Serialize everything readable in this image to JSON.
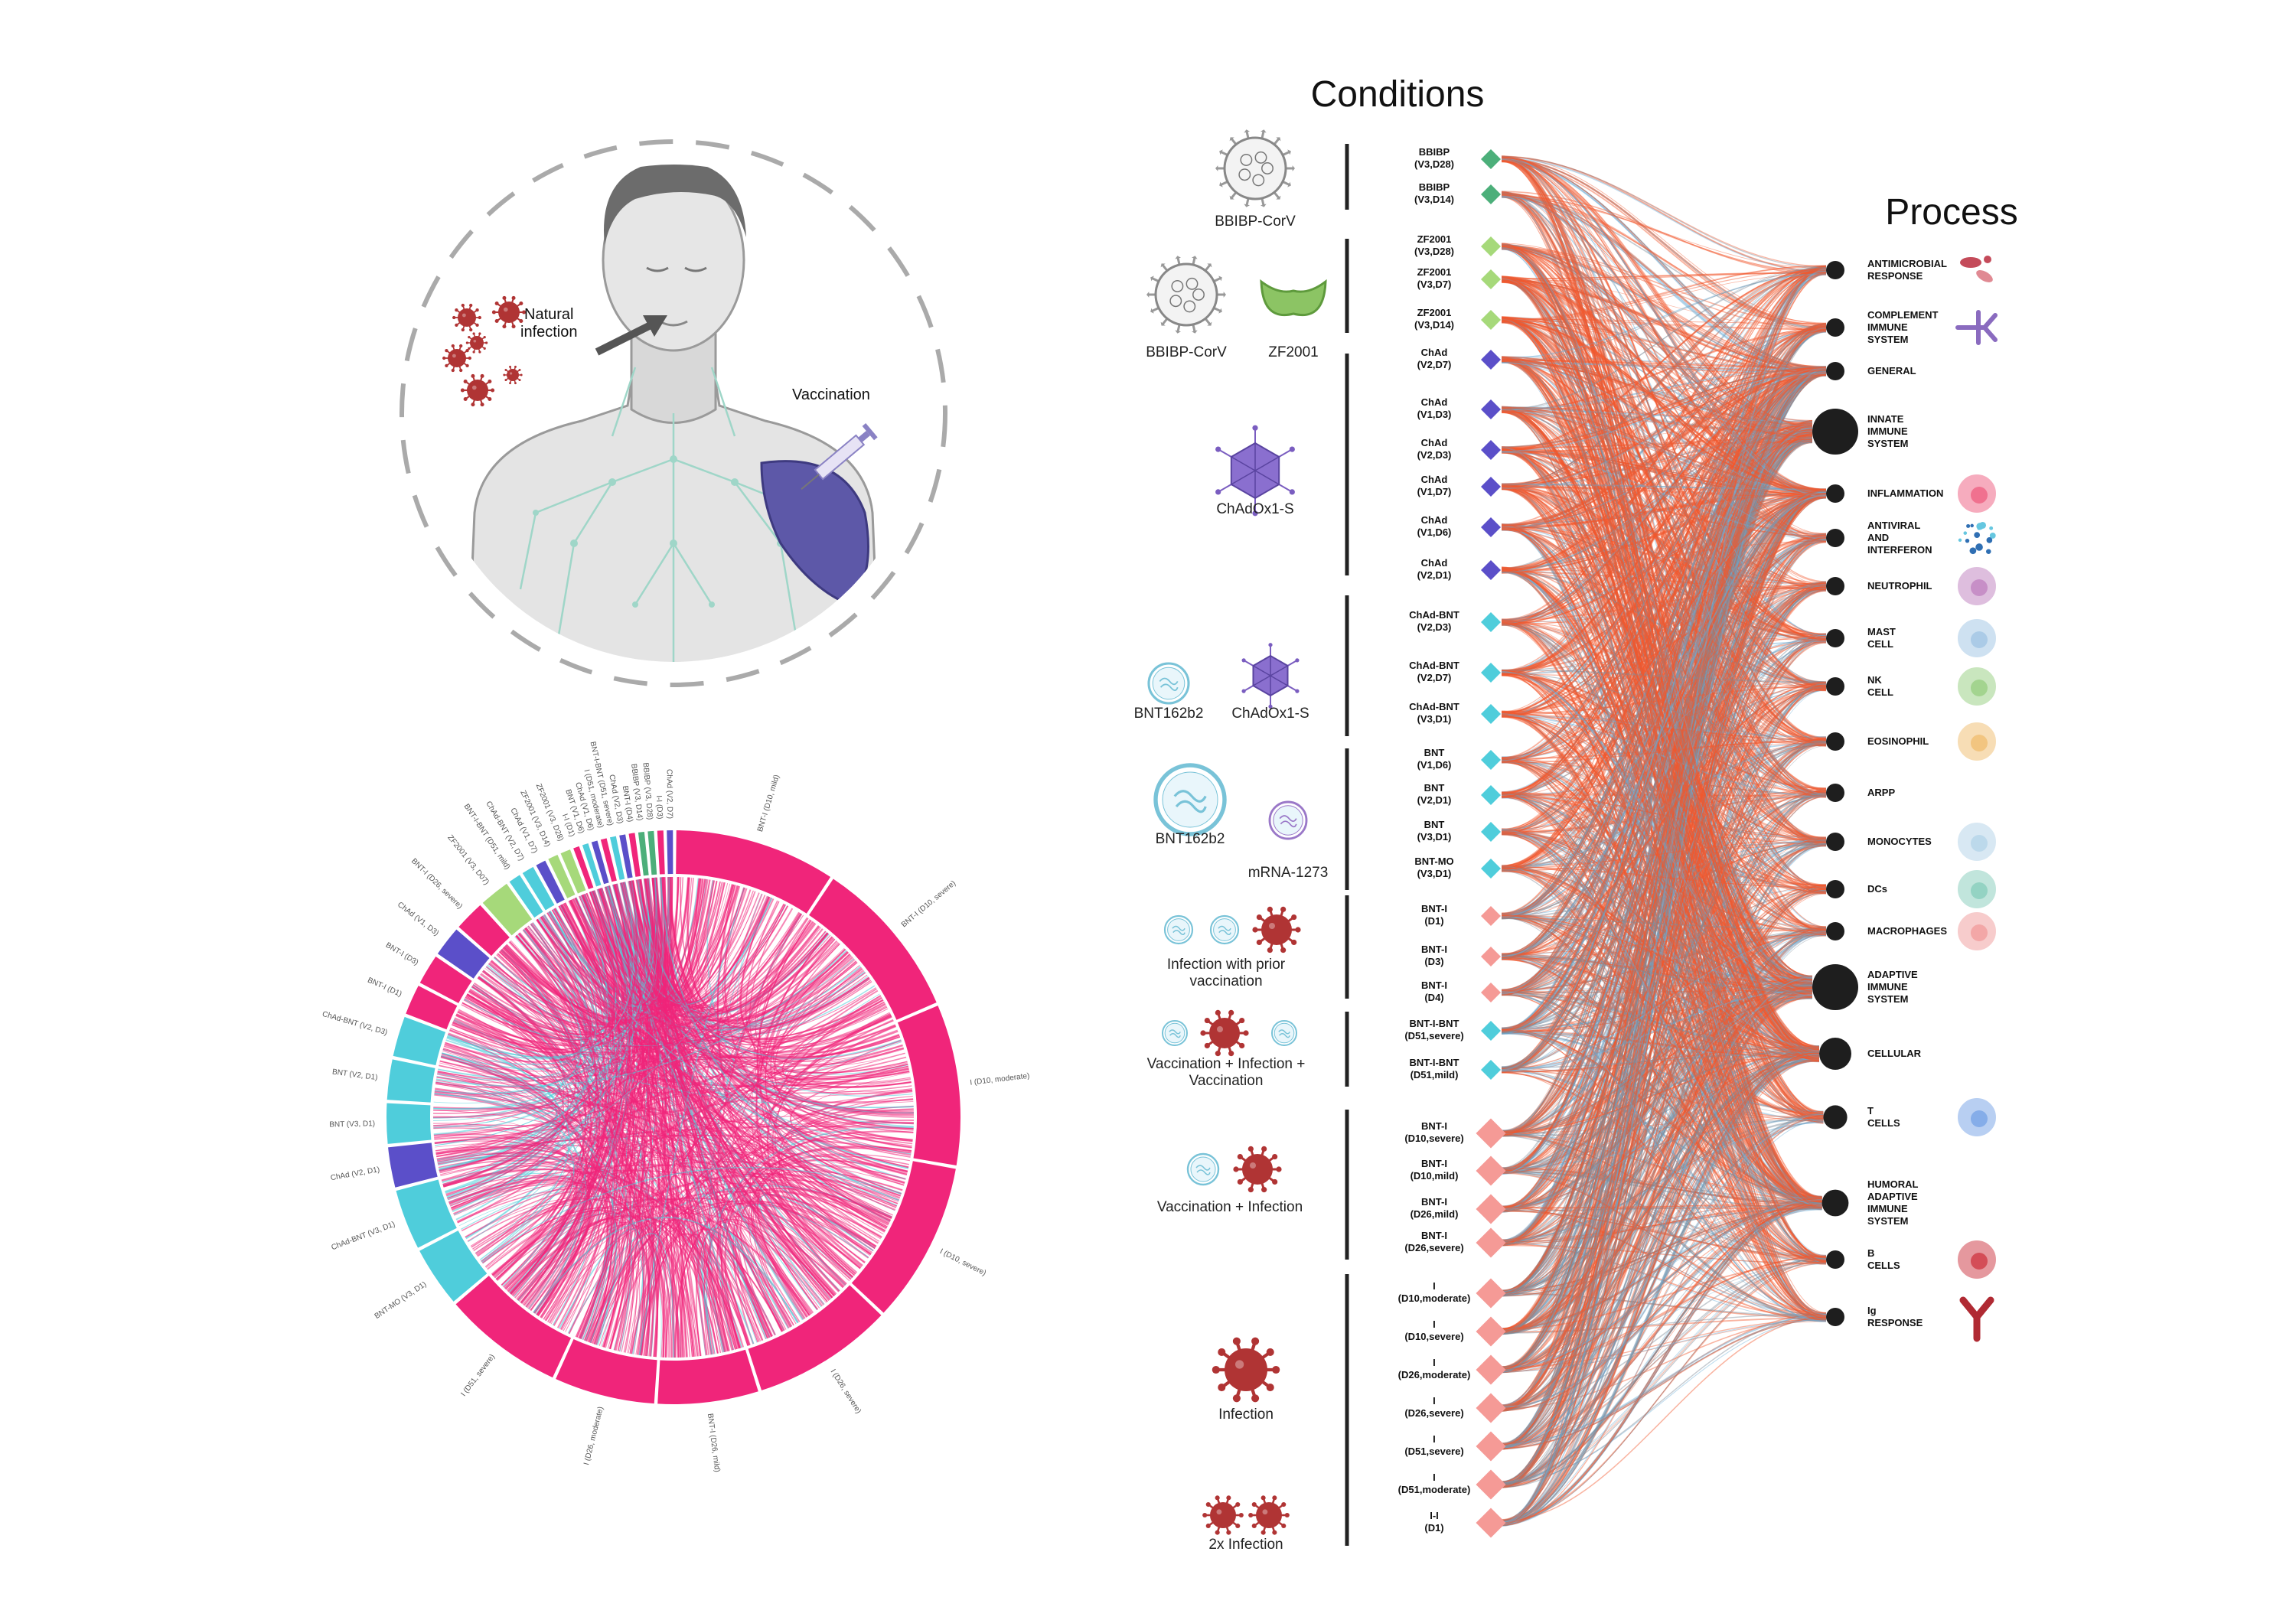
{
  "titles": {
    "conditions": "Conditions",
    "process": "Process"
  },
  "illustration": {
    "natural_infection": "Natural\ninfection",
    "vaccination": "Vaccination"
  },
  "colors": {
    "bbibp": "#4caf7a",
    "zf2001": "#a6d97a",
    "chad": "#5b4fc9",
    "chad_bnt": "#4fcddb",
    "bnt": "#4fcddb",
    "infection": "#f59a96",
    "red_link": "#f2582e",
    "blue_link": "#6aaed6",
    "grey_link": "#7f8c99",
    "chord_pink": "#f0257a"
  },
  "groups": [
    {
      "caption": "BBIBP-CorV",
      "icons": [
        "virion-icon"
      ],
      "rows": [
        "BBIBP\n(V3,D28)",
        "BBIBP\n(V3,D14)"
      ],
      "color": "#4caf7a"
    },
    {
      "caption": "",
      "icons": [
        "virion-icon",
        "zf2001-protein-icon"
      ],
      "icon_captions": [
        "BBIBP-CorV",
        "ZF2001"
      ],
      "rows": [
        "ZF2001\n(V3,D28)",
        "ZF2001\n(V3,D7)",
        "ZF2001\n(V3,D14)"
      ],
      "color": "#a6d97a"
    },
    {
      "caption": "ChAdOx1-S",
      "icons": [
        "adenovirus-icon"
      ],
      "rows": [
        "ChAd\n(V2,D7)",
        "ChAd\n(V1,D3)",
        "ChAd\n(V2,D3)",
        "ChAd\n(V1,D7)",
        "ChAd\n(V1,D6)",
        "ChAd\n(V2,D1)"
      ],
      "color": "#5b4fc9"
    },
    {
      "caption": "",
      "icons": [
        "mrna-lnp-icon",
        "adenovirus-icon"
      ],
      "icon_captions": [
        "BNT162b2",
        "ChAdOx1-S"
      ],
      "rows": [
        "ChAd-BNT\n(V2,D3)",
        "ChAd-BNT\n(V2,D7)",
        "ChAd-BNT\n(V3,D1)"
      ],
      "color": "#4fcddb"
    },
    {
      "caption": "",
      "icons": [
        "mrna-lnp-icon",
        "mrna-lnp-purple-icon"
      ],
      "icon_captions": [
        "BNT162b2",
        "mRNA-1273"
      ],
      "rows": [
        "BNT\n(V1,D6)",
        "BNT\n(V2,D1)",
        "BNT\n(V3,D1)",
        "BNT-MO\n(V3,D1)"
      ],
      "color": "#4fcddb"
    },
    {
      "caption": "Infection with prior\nvaccination",
      "icons": [
        "mrna-lnp-icon",
        "mrna-lnp-icon",
        "virus-icon"
      ],
      "rows": [
        "BNT-I\n(D1)",
        "BNT-I\n(D3)",
        "BNT-I\n(D4)"
      ],
      "color": "#f59a96"
    },
    {
      "caption": "Vaccination + Infection +\nVaccination",
      "icons": [
        "mrna-lnp-icon",
        "virus-icon",
        "mrna-lnp-icon"
      ],
      "rows": [
        "BNT-I-BNT\n(D51,severe)",
        "BNT-I-BNT\n(D51,mild)"
      ],
      "color": "#4fcddb"
    },
    {
      "caption": "Vaccination + Infection",
      "icons": [
        "mrna-lnp-icon",
        "virus-icon"
      ],
      "rows": [
        "BNT-I\n(D10,severe)",
        "BNT-I\n(D10,mild)",
        "BNT-I\n(D26,mild)",
        "BNT-I\n(D26,severe)"
      ],
      "color": "#f59a96"
    },
    {
      "caption": "Infection",
      "icons": [
        "virus-icon"
      ],
      "rows": [
        "I\n(D10,moderate)",
        "I\n(D10,severe)",
        "I\n(D26,moderate)",
        "I\n(D26,severe)",
        "I\n(D51,severe)",
        "I\n(D51,moderate)"
      ],
      "color": "#f59a96"
    },
    {
      "caption": "2x Infection",
      "icons": [
        "virus-icon",
        "virus-icon"
      ],
      "rows": [
        "I-I\n(D1)"
      ],
      "color": "#f59a96"
    }
  ],
  "processes": [
    {
      "label": "ANTIMICROBIAL\nRESPONSE",
      "size": 1,
      "icon": "bacteria-icon"
    },
    {
      "label": "COMPLEMENT\nIMMUNE\nSYSTEM",
      "size": 1,
      "icon": "complement-icon"
    },
    {
      "label": "GENERAL",
      "size": 1,
      "icon": ""
    },
    {
      "label": "INNATE\nIMMUNE\nSYSTEM",
      "size": 2,
      "icon": ""
    },
    {
      "label": "INFLAMMATION",
      "size": 1,
      "icon": "inflammation-icon"
    },
    {
      "label": "ANTIVIRAL\nAND\nINTERFERON",
      "size": 1,
      "icon": "interferon-icon"
    },
    {
      "label": "NEUTROPHIL",
      "size": 1,
      "icon": "neutrophil-icon"
    },
    {
      "label": "MAST\nCELL",
      "size": 1,
      "icon": "mast-cell-icon"
    },
    {
      "label": "NK\nCELL",
      "size": 1,
      "icon": "nk-cell-icon"
    },
    {
      "label": "EOSINOPHIL",
      "size": 1,
      "icon": "eosinophil-icon"
    },
    {
      "label": "ARPP",
      "size": 1,
      "icon": ""
    },
    {
      "label": "MONOCYTES",
      "size": 1,
      "icon": "monocyte-icon"
    },
    {
      "label": "DCs",
      "size": 1,
      "icon": "dendritic-cell-icon"
    },
    {
      "label": "MACROPHAGES",
      "size": 1,
      "icon": "macrophage-icon"
    },
    {
      "label": "ADAPTIVE\nIMMUNE\nSYSTEM",
      "size": 2,
      "icon": ""
    },
    {
      "label": "CELLULAR",
      "size": 1.5,
      "icon": ""
    },
    {
      "label": "T\nCELLS",
      "size": 1.2,
      "icon": "t-cell-icon"
    },
    {
      "label": "HUMORAL\nADAPTIVE\nIMMUNE\nSYSTEM",
      "size": 1.3,
      "icon": ""
    },
    {
      "label": "B\nCELLS",
      "size": 1,
      "icon": "b-cell-icon"
    },
    {
      "label": "Ig\nRESPONSE",
      "size": 1,
      "icon": "antibody-icon"
    }
  ],
  "chord_data": {
    "type": "chord",
    "segments": [
      {
        "label": "BNT-I (D10, mild)",
        "weight": 8,
        "color": "#f0257a"
      },
      {
        "label": "BNT-I (D10, severe)",
        "weight": 8,
        "color": "#f0257a"
      },
      {
        "label": "I (D10, moderate)",
        "weight": 8,
        "color": "#f0257a"
      },
      {
        "label": "I (D10, severe)",
        "weight": 8,
        "color": "#f0257a"
      },
      {
        "label": "I (D26, severe)",
        "weight": 7,
        "color": "#f0257a"
      },
      {
        "label": "BNT-I (D26, mild)",
        "weight": 5,
        "color": "#f0257a"
      },
      {
        "label": "I (D26, moderate)",
        "weight": 5,
        "color": "#f0257a"
      },
      {
        "label": "I (D51, severe)",
        "weight": 6,
        "color": "#f0257a"
      },
      {
        "label": "BNT-MO (V3, D1)",
        "weight": 3,
        "color": "#4fcddb"
      },
      {
        "label": "ChAd-BNT (V3, D1)",
        "weight": 3,
        "color": "#4fcddb"
      },
      {
        "label": "ChAd (V2, D1)",
        "weight": 2,
        "color": "#5b4fc9"
      },
      {
        "label": "BNT (V3, D1)",
        "weight": 2,
        "color": "#4fcddb"
      },
      {
        "label": "BNT (V2, D1)",
        "weight": 2,
        "color": "#4fcddb"
      },
      {
        "label": "ChAd-BNT (V2, D3)",
        "weight": 2,
        "color": "#4fcddb"
      },
      {
        "label": "BNT-I (D1)",
        "weight": 1.5,
        "color": "#f0257a"
      },
      {
        "label": "BNT-I (D3)",
        "weight": 1.5,
        "color": "#f0257a"
      },
      {
        "label": "ChAd (V1, D3)",
        "weight": 1.5,
        "color": "#5b4fc9"
      },
      {
        "label": "BNT-I (D26, severe)",
        "weight": 1.5,
        "color": "#f0257a"
      },
      {
        "label": "ZF2001 (V3, D07)",
        "weight": 1.5,
        "color": "#a6d97a"
      },
      {
        "label": "BNT-I-BNT (D51, mild)",
        "weight": 0.6,
        "color": "#4fcddb"
      },
      {
        "label": "ChAd-BNT (V2, D7)",
        "weight": 0.6,
        "color": "#4fcddb"
      },
      {
        "label": "ChAd (V1, D7)",
        "weight": 0.5,
        "color": "#5b4fc9"
      },
      {
        "label": "ZF2001 (V3, D14)",
        "weight": 0.5,
        "color": "#a6d97a"
      },
      {
        "label": "ZF2001 (V3, D28)",
        "weight": 0.5,
        "color": "#a6d97a"
      },
      {
        "label": "I-I (D1)",
        "weight": 0.3,
        "color": "#f0257a"
      },
      {
        "label": "BNT (V1, D6)",
        "weight": 0.3,
        "color": "#4fcddb"
      },
      {
        "label": "ChAd (V1, D6)",
        "weight": 0.3,
        "color": "#5b4fc9"
      },
      {
        "label": "I (D51, moderate)",
        "weight": 0.3,
        "color": "#f0257a"
      },
      {
        "label": "BNT-I-BNT (D51, severe)",
        "weight": 0.3,
        "color": "#4fcddb"
      },
      {
        "label": "ChAd (V2, D3)",
        "weight": 0.3,
        "color": "#5b4fc9"
      },
      {
        "label": "BNT-I (D4)",
        "weight": 0.3,
        "color": "#f0257a"
      },
      {
        "label": "BBIBP (V3, D14)",
        "weight": 0.3,
        "color": "#4caf7a"
      },
      {
        "label": "BBIBP (V3, D28)",
        "weight": 0.3,
        "color": "#4caf7a"
      },
      {
        "label": "I-I (D3)",
        "weight": 0.3,
        "color": "#f0257a"
      },
      {
        "label": "ChAd (V2, D7)",
        "weight": 0.3,
        "color": "#5b4fc9"
      }
    ]
  }
}
